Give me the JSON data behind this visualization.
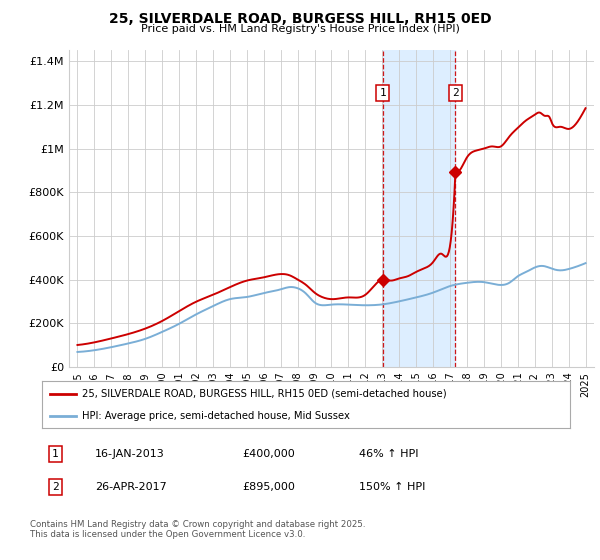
{
  "title": "25, SILVERDALE ROAD, BURGESS HILL, RH15 0ED",
  "subtitle": "Price paid vs. HM Land Registry's House Price Index (HPI)",
  "legend_line1": "25, SILVERDALE ROAD, BURGESS HILL, RH15 0ED (semi-detached house)",
  "legend_line2": "HPI: Average price, semi-detached house, Mid Sussex",
  "footer": "Contains HM Land Registry data © Crown copyright and database right 2025.\nThis data is licensed under the Open Government Licence v3.0.",
  "annotation1_label": "1",
  "annotation1_date": "16-JAN-2013",
  "annotation1_price": "£400,000",
  "annotation1_hpi": "46% ↑ HPI",
  "annotation2_label": "2",
  "annotation2_date": "26-APR-2017",
  "annotation2_price": "£895,000",
  "annotation2_hpi": "150% ↑ HPI",
  "sale1_x": 2013.04,
  "sale1_y": 400000,
  "sale2_x": 2017.32,
  "sale2_y": 895000,
  "red_color": "#cc0000",
  "blue_color": "#7aaed6",
  "shade_color": "#ddeeff",
  "grid_color": "#cccccc",
  "background_color": "#ffffff",
  "ylim": [
    0,
    1450000
  ],
  "xlim": [
    1994.5,
    2025.5
  ],
  "yticks": [
    0,
    200000,
    400000,
    600000,
    800000,
    1000000,
    1200000,
    1400000
  ],
  "ytick_labels": [
    "£0",
    "£200K",
    "£400K",
    "£600K",
    "£800K",
    "£1M",
    "£1.2M",
    "£1.4M"
  ]
}
